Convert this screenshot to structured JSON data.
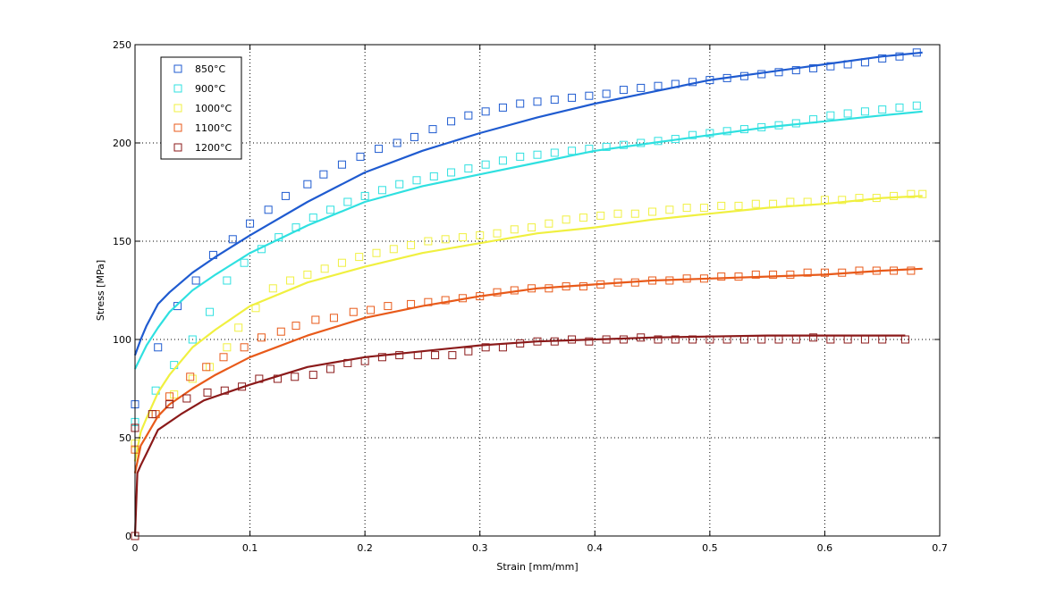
{
  "chart_data": {
    "type": "line",
    "title": "",
    "xlabel": "Strain [mm/mm]",
    "ylabel": "Stress [MPa]",
    "xlim": [
      0,
      0.7
    ],
    "ylim": [
      0,
      250
    ],
    "xticks": [
      0,
      0.1,
      0.2,
      0.3,
      0.4,
      0.5,
      0.6,
      0.7
    ],
    "xtick_labels": [
      "0",
      "0.1",
      "0.2",
      "0.3",
      "0.4",
      "0.5",
      "0.6",
      "0.7"
    ],
    "yticks": [
      0,
      50,
      100,
      150,
      200,
      250
    ],
    "ytick_labels": [
      "0",
      "50",
      "100",
      "150",
      "200",
      "250"
    ],
    "grid": true,
    "grid_style": "dotted",
    "legend_position": "top-left",
    "series": [
      {
        "name": "850°C",
        "color": "#1f5bd0",
        "measured": {
          "x": [
            0,
            0.02,
            0.037,
            0.053,
            0.068,
            0.085,
            0.1,
            0.116,
            0.131,
            0.15,
            0.164,
            0.18,
            0.196,
            0.212,
            0.228,
            0.243,
            0.259,
            0.275,
            0.29,
            0.305,
            0.32,
            0.335,
            0.35,
            0.365,
            0.38,
            0.395,
            0.41,
            0.425,
            0.44,
            0.455,
            0.47,
            0.485,
            0.5,
            0.515,
            0.53,
            0.545,
            0.56,
            0.575,
            0.59,
            0.605,
            0.62,
            0.635,
            0.65,
            0.665,
            0.68
          ],
          "y": [
            67,
            96,
            117,
            130,
            143,
            151,
            159,
            166,
            173,
            179,
            184,
            189,
            193,
            197,
            200,
            203,
            207,
            211,
            214,
            216,
            218,
            220,
            221,
            222,
            223,
            224,
            225,
            227,
            228,
            229,
            230,
            231,
            232,
            233,
            234,
            235,
            236,
            237,
            238,
            239,
            240,
            241,
            243,
            244,
            246
          ]
        },
        "fit": {
          "x": [
            0,
            0.005,
            0.01,
            0.02,
            0.03,
            0.05,
            0.07,
            0.1,
            0.15,
            0.2,
            0.25,
            0.3,
            0.35,
            0.4,
            0.45,
            0.5,
            0.55,
            0.6,
            0.65,
            0.685
          ],
          "y": [
            92,
            100,
            107,
            118,
            124,
            134,
            142,
            153,
            170,
            185,
            196,
            205,
            213,
            220,
            226,
            232,
            236,
            240,
            244,
            246
          ]
        }
      },
      {
        "name": "900°C",
        "color": "#2fe0e0",
        "measured": {
          "x": [
            0,
            0.018,
            0.034,
            0.05,
            0.065,
            0.08,
            0.095,
            0.11,
            0.125,
            0.14,
            0.155,
            0.17,
            0.185,
            0.2,
            0.215,
            0.23,
            0.245,
            0.26,
            0.275,
            0.29,
            0.305,
            0.32,
            0.335,
            0.35,
            0.365,
            0.38,
            0.395,
            0.41,
            0.425,
            0.44,
            0.455,
            0.47,
            0.485,
            0.5,
            0.515,
            0.53,
            0.545,
            0.56,
            0.575,
            0.59,
            0.605,
            0.62,
            0.635,
            0.65,
            0.665,
            0.68
          ],
          "y": [
            58,
            74,
            87,
            100,
            114,
            130,
            139,
            146,
            152,
            157,
            162,
            166,
            170,
            173,
            176,
            179,
            181,
            183,
            185,
            187,
            189,
            191,
            193,
            194,
            195,
            196,
            197,
            198,
            199,
            200,
            201,
            202,
            204,
            205,
            206,
            207,
            208,
            209,
            210,
            212,
            214,
            215,
            216,
            217,
            218,
            219
          ]
        },
        "fit": {
          "x": [
            0,
            0.005,
            0.01,
            0.02,
            0.03,
            0.05,
            0.07,
            0.1,
            0.15,
            0.2,
            0.25,
            0.3,
            0.35,
            0.4,
            0.45,
            0.5,
            0.55,
            0.6,
            0.65,
            0.685
          ],
          "y": [
            85,
            91,
            97,
            106,
            114,
            125,
            133,
            144,
            158,
            170,
            178,
            184,
            190,
            196,
            200,
            204,
            208,
            211,
            214,
            216
          ]
        }
      },
      {
        "name": "1000°C",
        "color": "#f0f040",
        "measured": {
          "x": [
            0,
            0.018,
            0.034,
            0.05,
            0.065,
            0.08,
            0.09,
            0.105,
            0.12,
            0.135,
            0.15,
            0.165,
            0.18,
            0.195,
            0.21,
            0.225,
            0.24,
            0.255,
            0.27,
            0.285,
            0.3,
            0.315,
            0.33,
            0.345,
            0.36,
            0.375,
            0.39,
            0.405,
            0.42,
            0.435,
            0.45,
            0.465,
            0.48,
            0.495,
            0.51,
            0.525,
            0.54,
            0.555,
            0.57,
            0.585,
            0.6,
            0.615,
            0.63,
            0.645,
            0.66,
            0.675,
            0.685
          ],
          "y": [
            47,
            62,
            72,
            80,
            86,
            96,
            106,
            116,
            126,
            130,
            133,
            136,
            139,
            142,
            144,
            146,
            148,
            150,
            151,
            152,
            153,
            154,
            156,
            157,
            159,
            161,
            162,
            163,
            164,
            164,
            165,
            166,
            167,
            167,
            168,
            168,
            169,
            169,
            170,
            170,
            171,
            171,
            172,
            172,
            173,
            174,
            174
          ]
        },
        "fit": {
          "x": [
            0,
            0.005,
            0.01,
            0.02,
            0.03,
            0.05,
            0.07,
            0.1,
            0.15,
            0.2,
            0.25,
            0.3,
            0.35,
            0.4,
            0.45,
            0.5,
            0.55,
            0.6,
            0.65,
            0.685
          ],
          "y": [
            38,
            53,
            60,
            73,
            82,
            96,
            105,
            117,
            129,
            137,
            144,
            149,
            154,
            157,
            161,
            164,
            167,
            169,
            172,
            173
          ]
        }
      },
      {
        "name": "1100°C",
        "color": "#e85a1a",
        "measured": {
          "x": [
            0,
            0.018,
            0.03,
            0.048,
            0.062,
            0.077,
            0.095,
            0.11,
            0.127,
            0.14,
            0.157,
            0.173,
            0.19,
            0.205,
            0.22,
            0.24,
            0.255,
            0.27,
            0.285,
            0.3,
            0.315,
            0.33,
            0.345,
            0.36,
            0.375,
            0.39,
            0.405,
            0.42,
            0.435,
            0.45,
            0.465,
            0.48,
            0.495,
            0.51,
            0.525,
            0.54,
            0.555,
            0.57,
            0.585,
            0.6,
            0.615,
            0.63,
            0.645,
            0.66,
            0.675
          ],
          "y": [
            44,
            62,
            71,
            81,
            86,
            91,
            96,
            101,
            104,
            107,
            110,
            111,
            114,
            115,
            117,
            118,
            119,
            120,
            121,
            122,
            124,
            125,
            126,
            126,
            127,
            127,
            128,
            129,
            129,
            130,
            130,
            131,
            131,
            132,
            132,
            133,
            133,
            133,
            134,
            134,
            134,
            135,
            135,
            135,
            135
          ]
        },
        "fit": {
          "x": [
            0,
            0.005,
            0.01,
            0.02,
            0.03,
            0.05,
            0.07,
            0.1,
            0.15,
            0.2,
            0.25,
            0.3,
            0.35,
            0.4,
            0.45,
            0.5,
            0.55,
            0.6,
            0.65,
            0.685
          ],
          "y": [
            32,
            46,
            51,
            61,
            67,
            75,
            82,
            91,
            102,
            111,
            117,
            122,
            126,
            128,
            130,
            131,
            132,
            133,
            135,
            136
          ]
        }
      },
      {
        "name": "1200°C",
        "color": "#8b1a1a",
        "measured": {
          "x": [
            0,
            0.0,
            0.015,
            0.03,
            0.045,
            0.063,
            0.078,
            0.093,
            0.108,
            0.124,
            0.139,
            0.155,
            0.17,
            0.185,
            0.2,
            0.215,
            0.23,
            0.246,
            0.261,
            0.276,
            0.29,
            0.305,
            0.32,
            0.335,
            0.35,
            0.365,
            0.38,
            0.395,
            0.41,
            0.425,
            0.44,
            0.455,
            0.47,
            0.485,
            0.5,
            0.515,
            0.53,
            0.545,
            0.56,
            0.575,
            0.59,
            0.605,
            0.62,
            0.635,
            0.65,
            0.67
          ],
          "y": [
            0,
            55,
            62,
            67,
            70,
            73,
            74,
            76,
            80,
            80,
            81,
            82,
            85,
            88,
            89,
            91,
            92,
            92,
            92,
            92,
            94,
            96,
            96,
            98,
            99,
            99,
            100,
            99,
            100,
            100,
            101,
            100,
            100,
            100,
            100,
            100,
            100,
            100,
            100,
            100,
            101,
            100,
            100,
            100,
            100,
            100
          ]
        },
        "fit": {
          "x": [
            0,
            0.002,
            0.005,
            0.01,
            0.02,
            0.04,
            0.06,
            0.1,
            0.15,
            0.2,
            0.25,
            0.3,
            0.35,
            0.4,
            0.45,
            0.5,
            0.55,
            0.6,
            0.65,
            0.67
          ],
          "y": [
            0,
            32,
            36,
            42,
            54,
            62,
            69,
            77,
            86,
            91,
            94,
            97,
            99,
            100,
            101,
            101.5,
            102,
            102,
            102,
            102
          ]
        }
      }
    ]
  }
}
